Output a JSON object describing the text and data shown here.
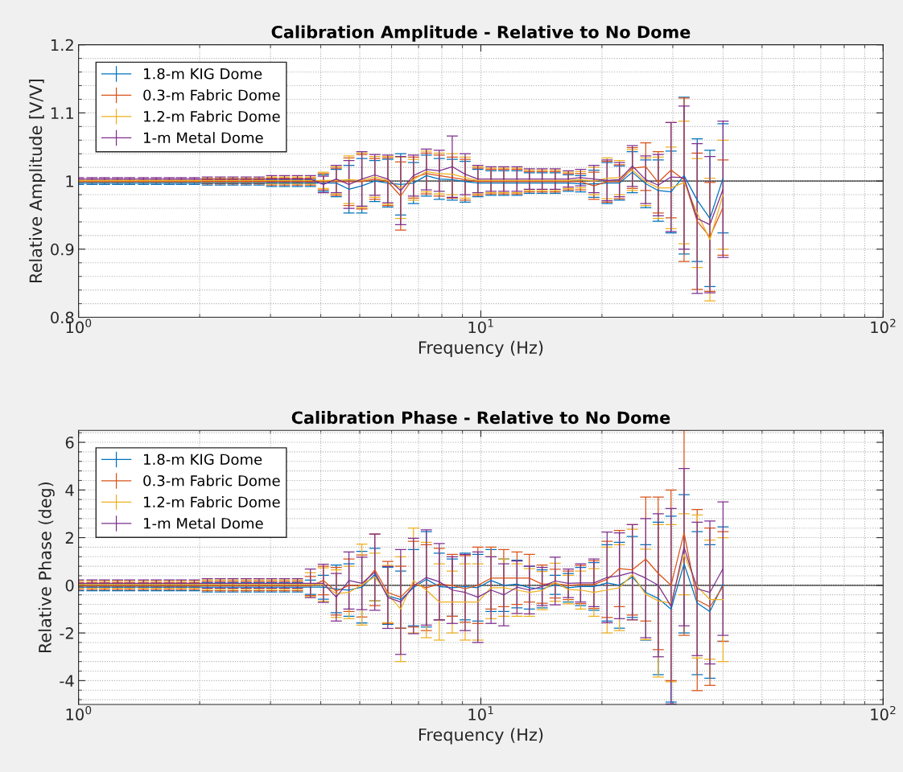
{
  "chart_data": [
    {
      "type": "line",
      "title": "Calibration Amplitude - Relative to No Dome",
      "xlabel": "Frequency (Hz)",
      "ylabel": "Relative Amplitude [V/V]",
      "log": "x",
      "grid": true,
      "legend": "top left",
      "xlim": [
        1,
        100
      ],
      "xticks": [
        {
          "value": 1,
          "label": "10$^{0}$"
        },
        {
          "value": 10,
          "label": "10$^{1}$"
        },
        {
          "value": 100,
          "label": "10$^{2}$"
        }
      ],
      "ylim": [
        0.8,
        1.2
      ],
      "yticks": [
        0.8,
        0.9,
        1,
        1.1,
        1.2
      ],
      "ref_lines": [
        {
          "axis": "y",
          "value": 1,
          "color": "#000000"
        }
      ],
      "x": [
        1.0,
        1.08,
        1.16,
        1.25,
        1.34,
        1.45,
        1.56,
        1.68,
        1.8,
        1.94,
        2.09,
        2.25,
        2.42,
        2.61,
        2.81,
        3.02,
        3.25,
        3.5,
        3.77,
        4.06,
        4.37,
        4.7,
        5.06,
        5.45,
        5.87,
        6.32,
        6.8,
        7.32,
        7.88,
        8.49,
        9.14,
        9.83,
        10.6,
        11.4,
        12.3,
        13.2,
        14.2,
        15.3,
        16.5,
        17.7,
        19.1,
        20.6,
        22.1,
        23.8,
        25.7,
        27.6,
        29.7,
        32.0,
        34.5,
        37.1,
        40.0
      ],
      "series": [
        {
          "name": "1.8-m KIG Dome",
          "color": "#0072bd",
          "values": [
            0.997,
            0.997,
            0.997,
            0.997,
            0.997,
            0.997,
            0.997,
            0.997,
            0.997,
            0.997,
            0.997,
            0.997,
            0.997,
            0.997,
            0.997,
            0.997,
            0.997,
            0.997,
            0.997,
            0.997,
            0.997,
            0.988,
            0.993,
            1.0,
            0.997,
            0.995,
            0.997,
            1.008,
            1.003,
            1.002,
            0.999,
            0.997,
            0.997,
            0.997,
            0.997,
            0.997,
            0.997,
            0.997,
            0.997,
            0.996,
            0.996,
            0.997,
            0.997,
            1.013,
            0.996,
            0.986,
            0.984,
            1.008,
            0.972,
            0.945,
            1.004
          ],
          "errors": [
            0.002,
            0.002,
            0.002,
            0.002,
            0.002,
            0.002,
            0.002,
            0.002,
            0.002,
            0.002,
            0.003,
            0.003,
            0.003,
            0.003,
            0.003,
            0.005,
            0.005,
            0.005,
            0.005,
            0.012,
            0.02,
            0.035,
            0.04,
            0.03,
            0.035,
            0.045,
            0.03,
            0.03,
            0.03,
            0.03,
            0.03,
            0.02,
            0.018,
            0.018,
            0.018,
            0.015,
            0.015,
            0.015,
            0.012,
            0.012,
            0.02,
            0.03,
            0.025,
            0.03,
            0.035,
            0.045,
            0.06,
            0.115,
            0.09,
            0.1,
            0.08
          ]
        },
        {
          "name": "0.3-m Fabric Dome",
          "color": "#d95319",
          "values": [
            0.999,
            0.999,
            0.999,
            0.999,
            0.999,
            0.999,
            0.999,
            0.999,
            0.999,
            0.999,
            0.999,
            0.999,
            0.999,
            0.999,
            0.999,
            0.999,
            0.999,
            0.999,
            0.999,
            0.999,
            0.999,
            0.999,
            0.999,
            1.003,
            0.999,
            0.978,
            1.005,
            1.011,
            1.008,
            1.005,
            1.002,
            0.999,
            0.999,
            0.999,
            0.999,
            0.999,
            0.999,
            0.999,
            0.999,
            0.999,
            0.993,
            0.999,
            0.999,
            1.019,
            1.021,
            0.998,
            1.016,
            1.002,
            0.941,
            0.918,
            0.961
          ],
          "errors": [
            0.002,
            0.002,
            0.002,
            0.002,
            0.002,
            0.002,
            0.002,
            0.002,
            0.002,
            0.002,
            0.003,
            0.003,
            0.003,
            0.003,
            0.003,
            0.005,
            0.005,
            0.005,
            0.005,
            0.012,
            0.02,
            0.035,
            0.04,
            0.03,
            0.035,
            0.05,
            0.03,
            0.03,
            0.03,
            0.03,
            0.03,
            0.02,
            0.018,
            0.018,
            0.018,
            0.015,
            0.015,
            0.015,
            0.012,
            0.012,
            0.02,
            0.03,
            0.025,
            0.03,
            0.035,
            0.045,
            0.07,
            0.12,
            0.1,
            0.08,
            0.07
          ]
        },
        {
          "name": "1.2-m Fabric Dome",
          "color": "#edb120",
          "values": [
            1.001,
            1.001,
            1.001,
            1.001,
            1.001,
            1.001,
            1.001,
            1.001,
            1.001,
            1.001,
            1.001,
            1.001,
            1.001,
            1.001,
            1.001,
            1.001,
            1.001,
            1.001,
            1.001,
            1.001,
            1.001,
            1.002,
            1.001,
            1.006,
            1.001,
            0.99,
            1.002,
            1.014,
            1.011,
            1.01,
            1.005,
            1.001,
            1.001,
            1.001,
            1.001,
            1.001,
            1.001,
            1.001,
            1.001,
            1.002,
            1.0,
            1.004,
            1.005,
            1.016,
            0.999,
            0.99,
            0.99,
            0.998,
            0.953,
            0.914,
            0.98
          ],
          "errors": [
            0.002,
            0.002,
            0.002,
            0.002,
            0.002,
            0.002,
            0.002,
            0.002,
            0.002,
            0.002,
            0.003,
            0.003,
            0.003,
            0.003,
            0.003,
            0.005,
            0.005,
            0.005,
            0.005,
            0.012,
            0.02,
            0.035,
            0.04,
            0.03,
            0.035,
            0.045,
            0.03,
            0.03,
            0.03,
            0.03,
            0.03,
            0.02,
            0.018,
            0.018,
            0.018,
            0.015,
            0.015,
            0.015,
            0.012,
            0.012,
            0.02,
            0.03,
            0.025,
            0.03,
            0.035,
            0.045,
            0.06,
            0.09,
            0.08,
            0.09,
            0.08
          ]
        },
        {
          "name": "1-m Metal Dome",
          "color": "#7e2f8e",
          "values": [
            1.003,
            1.003,
            1.003,
            1.003,
            1.003,
            1.003,
            1.003,
            1.003,
            1.003,
            1.003,
            1.003,
            1.003,
            1.003,
            1.003,
            1.003,
            1.003,
            1.003,
            1.003,
            1.003,
            0.995,
            1.003,
            0.995,
            1.003,
            1.009,
            1.003,
            0.986,
            1.008,
            1.017,
            1.015,
            1.021,
            1.01,
            1.003,
            1.003,
            1.003,
            1.003,
            1.003,
            1.003,
            1.003,
            1.003,
            1.005,
            1.003,
            1.001,
            1.002,
            1.022,
            1.002,
            0.994,
            1.006,
            1.005,
            0.945,
            0.936,
            0.988
          ],
          "errors": [
            0.002,
            0.002,
            0.002,
            0.002,
            0.002,
            0.002,
            0.002,
            0.002,
            0.002,
            0.002,
            0.003,
            0.003,
            0.003,
            0.003,
            0.003,
            0.005,
            0.005,
            0.005,
            0.005,
            0.012,
            0.02,
            0.035,
            0.04,
            0.03,
            0.035,
            0.05,
            0.03,
            0.03,
            0.03,
            0.045,
            0.03,
            0.02,
            0.018,
            0.018,
            0.018,
            0.015,
            0.015,
            0.015,
            0.012,
            0.012,
            0.02,
            0.03,
            0.025,
            0.03,
            0.035,
            0.045,
            0.08,
            0.105,
            0.11,
            0.1,
            0.1
          ]
        }
      ]
    },
    {
      "type": "line",
      "title": "Calibration Phase - Relative to No Dome",
      "xlabel": "Frequency (Hz)",
      "ylabel": "Relative Phase (deg)",
      "log": "x",
      "grid": true,
      "legend": "top left",
      "xlim": [
        1,
        100
      ],
      "xticks": [
        {
          "value": 1,
          "label": "10$^{0}$"
        },
        {
          "value": 10,
          "label": "10$^{1}$"
        },
        {
          "value": 100,
          "label": "10$^{2}$"
        }
      ],
      "ylim": [
        -5,
        6.5
      ],
      "yticks": [
        -4,
        -2,
        0,
        2,
        4,
        6
      ],
      "ref_lines": [
        {
          "axis": "y",
          "value": 0,
          "color": "#000000"
        }
      ],
      "x": [
        1.0,
        1.08,
        1.16,
        1.25,
        1.34,
        1.45,
        1.56,
        1.68,
        1.8,
        1.94,
        2.09,
        2.25,
        2.42,
        2.61,
        2.81,
        3.02,
        3.25,
        3.5,
        3.77,
        4.06,
        4.37,
        4.7,
        5.06,
        5.45,
        5.87,
        6.32,
        6.8,
        7.32,
        7.88,
        8.49,
        9.14,
        9.83,
        10.6,
        11.4,
        12.3,
        13.2,
        14.2,
        15.3,
        16.5,
        17.7,
        19.1,
        20.6,
        22.1,
        23.8,
        25.7,
        27.6,
        29.7,
        32.0,
        34.5,
        37.1,
        40.0
      ],
      "series": [
        {
          "name": "1.8-m KIG Dome",
          "color": "#0072bd",
          "values": [
            -0.08,
            -0.08,
            -0.08,
            -0.08,
            -0.08,
            -0.08,
            -0.08,
            -0.08,
            -0.08,
            -0.08,
            -0.08,
            -0.08,
            -0.08,
            -0.08,
            -0.08,
            -0.08,
            -0.08,
            -0.08,
            -0.08,
            -0.08,
            -0.15,
            -0.2,
            -0.08,
            0.45,
            -0.44,
            -0.6,
            -0.1,
            0.25,
            -0.05,
            -0.1,
            -0.05,
            -0.1,
            0.2,
            0,
            0.05,
            -0.1,
            -0.15,
            0.02,
            -0.1,
            -0.05,
            -0.05,
            0.1,
            0,
            0.35,
            -0.3,
            -0.55,
            -1.0,
            0.9,
            -0.75,
            -1.1,
            0.05
          ],
          "errors": [
            0.15,
            0.15,
            0.15,
            0.15,
            0.15,
            0.15,
            0.15,
            0.15,
            0.15,
            0.15,
            0.2,
            0.2,
            0.2,
            0.2,
            0.2,
            0.2,
            0.2,
            0.2,
            0.3,
            0.5,
            1.0,
            1.1,
            1.5,
            1.1,
            1.2,
            1.2,
            1.6,
            2.0,
            1.4,
            1.2,
            1.4,
            1.4,
            1.3,
            1.1,
            1.0,
            0.9,
            0.8,
            0.4,
            0.6,
            0.8,
            1.0,
            1.6,
            1.8,
            1.7,
            2.0,
            3.2,
            3.9,
            2.9,
            3.0,
            2.8,
            2.4
          ]
        },
        {
          "name": "0.3-m Fabric Dome",
          "color": "#d95319",
          "values": [
            -0.03,
            -0.03,
            -0.03,
            -0.03,
            -0.03,
            -0.03,
            -0.03,
            -0.03,
            -0.03,
            -0.03,
            -0.03,
            -0.03,
            -0.03,
            -0.03,
            -0.03,
            -0.03,
            -0.03,
            -0.03,
            -0.03,
            0.2,
            -0.25,
            0,
            -0.03,
            0.65,
            -0.3,
            -0.5,
            0.05,
            -0.1,
            0.05,
            0,
            -0.15,
            0,
            0.3,
            0.3,
            0.3,
            0.3,
            0.05,
            0.07,
            0,
            0.03,
            0.03,
            0.25,
            0.7,
            0.65,
            1.1,
            0.5,
            0,
            2.2,
            -0.62,
            -0.9,
            -0.05
          ],
          "errors": [
            0.15,
            0.15,
            0.15,
            0.15,
            0.15,
            0.15,
            0.15,
            0.15,
            0.15,
            0.15,
            0.2,
            0.2,
            0.2,
            0.2,
            0.2,
            0.2,
            0.2,
            0.2,
            0.4,
            0.6,
            1.0,
            1.1,
            1.3,
            1.5,
            1.3,
            1.3,
            1.8,
            1.8,
            1.5,
            1.3,
            1.4,
            1.6,
            1.3,
            1.2,
            1.1,
            1.0,
            0.8,
            0.6,
            0.6,
            0.8,
            1.0,
            1.6,
            1.6,
            1.9,
            2.6,
            3.2,
            4.0,
            4.3,
            3.8,
            3.3,
            2.3
          ]
        },
        {
          "name": "1.2-m Fabric Dome",
          "color": "#edb120",
          "values": [
            0.03,
            0.03,
            0.03,
            0.03,
            0.03,
            0.03,
            0.03,
            0.03,
            0.03,
            0.03,
            0.03,
            0.03,
            0.03,
            0.03,
            0.03,
            0.03,
            0.03,
            0.03,
            0.03,
            0.03,
            -0.35,
            -0.3,
            0.03,
            0.35,
            -0.37,
            -1.0,
            0.2,
            -0.2,
            -0.7,
            -0.7,
            -0.7,
            -0.7,
            -0.1,
            -0.1,
            -0.2,
            -0.3,
            -0.22,
            0.13,
            -0.18,
            -0.2,
            -0.3,
            -0.2,
            -0.1,
            0.45,
            -0.38,
            -0.65,
            -0.75,
            1.3,
            -0.05,
            -0.6,
            -0.6
          ],
          "errors": [
            0.15,
            0.15,
            0.15,
            0.15,
            0.15,
            0.15,
            0.15,
            0.15,
            0.15,
            0.15,
            0.2,
            0.2,
            0.2,
            0.2,
            0.2,
            0.2,
            0.2,
            0.2,
            0.5,
            0.7,
            1.0,
            1.1,
            1.7,
            1.0,
            1.2,
            2.2,
            2.2,
            2.0,
            1.6,
            1.3,
            1.6,
            1.6,
            1.3,
            1.2,
            1.1,
            1.0,
            0.8,
            0.8,
            0.6,
            0.8,
            1.0,
            1.8,
            1.8,
            1.9,
            1.9,
            3.2,
            3.3,
            1.7,
            3.0,
            2.5,
            2.6
          ]
        },
        {
          "name": "1-m Metal Dome",
          "color": "#7e2f8e",
          "values": [
            0.08,
            0.08,
            0.08,
            0.08,
            0.08,
            0.08,
            0.08,
            0.08,
            0.08,
            0.08,
            0.08,
            0.08,
            0.08,
            0.08,
            0.08,
            0.08,
            0.08,
            0.08,
            0.08,
            0.08,
            -0.5,
            0.2,
            0.08,
            0.55,
            -0.51,
            -0.7,
            -0.03,
            0.33,
            0.15,
            -0.2,
            -0.3,
            -0.5,
            -0.2,
            -0.4,
            -0.08,
            -0.2,
            -0.05,
            0.18,
            0.08,
            0.1,
            0.1,
            0.33,
            0.4,
            0.55,
            0.3,
            0,
            -0.88,
            1.6,
            -0.15,
            -0.3,
            0.7
          ],
          "errors": [
            0.15,
            0.15,
            0.15,
            0.15,
            0.15,
            0.15,
            0.15,
            0.15,
            0.15,
            0.15,
            0.2,
            0.2,
            0.2,
            0.2,
            0.2,
            0.2,
            0.2,
            0.2,
            0.6,
            0.8,
            1.0,
            1.2,
            1.1,
            1.6,
            1.3,
            2.2,
            2.0,
            2.0,
            1.6,
            1.4,
            1.6,
            1.9,
            1.4,
            1.3,
            1.1,
            1.0,
            0.8,
            1.0,
            0.6,
            0.8,
            1.0,
            1.9,
            1.8,
            2.0,
            2.5,
            3.0,
            4.1,
            3.3,
            2.8,
            3.0,
            2.8
          ]
        }
      ]
    }
  ]
}
